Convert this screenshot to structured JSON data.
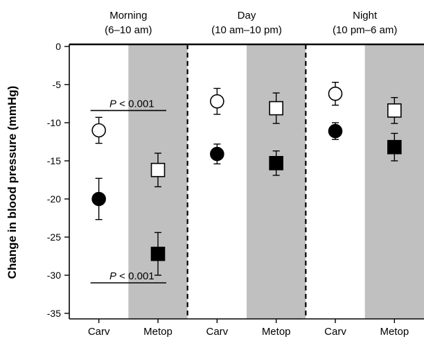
{
  "chart_data": {
    "type": "scatter",
    "ylabel": "Change in blood pressure (mmHg)",
    "ylim": [
      -36,
      0.5
    ],
    "yticks": [
      0,
      -5,
      -10,
      -15,
      -20,
      -25,
      -30,
      -35
    ],
    "periods": [
      {
        "name": "Morning",
        "range": "(6–10 am)"
      },
      {
        "name": "Day",
        "range": "(10 am–10 pm)"
      },
      {
        "name": "Night",
        "range": "(10 pm–6 am)"
      }
    ],
    "categories": [
      "Carv",
      "Metop",
      "Carv",
      "Metop",
      "Carv",
      "Metop"
    ],
    "shaded_categories": [
      1,
      3,
      5
    ],
    "series": [
      {
        "marker": "circle",
        "fill": "open",
        "points": [
          {
            "x": 0,
            "y": -11.0,
            "err": 1.7
          }
        ]
      },
      {
        "marker": "circle",
        "fill": "filled",
        "points": [
          {
            "x": 0,
            "y": -20.0,
            "err": 2.7
          }
        ]
      },
      {
        "marker": "square",
        "fill": "open",
        "points": [
          {
            "x": 1,
            "y": -16.2,
            "err": 2.2
          }
        ]
      },
      {
        "marker": "square",
        "fill": "filled",
        "points": [
          {
            "x": 1,
            "y": -27.2,
            "err": 2.8
          }
        ]
      },
      {
        "marker": "circle",
        "fill": "open",
        "points": [
          {
            "x": 2,
            "y": -7.2,
            "err": 1.7
          }
        ]
      },
      {
        "marker": "circle",
        "fill": "filled",
        "points": [
          {
            "x": 2,
            "y": -14.1,
            "err": 1.3
          }
        ]
      },
      {
        "marker": "square",
        "fill": "open",
        "points": [
          {
            "x": 3,
            "y": -8.1,
            "err": 2.0
          }
        ]
      },
      {
        "marker": "square",
        "fill": "filled",
        "points": [
          {
            "x": 3,
            "y": -15.3,
            "err": 1.6
          }
        ]
      },
      {
        "marker": "circle",
        "fill": "open",
        "points": [
          {
            "x": 4,
            "y": -6.2,
            "err": 1.5
          }
        ]
      },
      {
        "marker": "circle",
        "fill": "filled",
        "points": [
          {
            "x": 4,
            "y": -11.1,
            "err": 1.1
          }
        ]
      },
      {
        "marker": "square",
        "fill": "open",
        "points": [
          {
            "x": 5,
            "y": -8.4,
            "err": 1.7
          }
        ]
      },
      {
        "marker": "square",
        "fill": "filled",
        "points": [
          {
            "x": 5,
            "y": -13.2,
            "err": 1.8
          }
        ]
      }
    ],
    "annotations": [
      {
        "p": "P",
        "rest": " < 0.001",
        "line_y": -8.4,
        "from": 0,
        "to": 1
      },
      {
        "p": "P",
        "rest": " < 0.001",
        "line_y": -31.0,
        "from": 0,
        "to": 1
      }
    ],
    "colors": {
      "shade": "#c0c0c0",
      "axis": "#000000"
    }
  }
}
